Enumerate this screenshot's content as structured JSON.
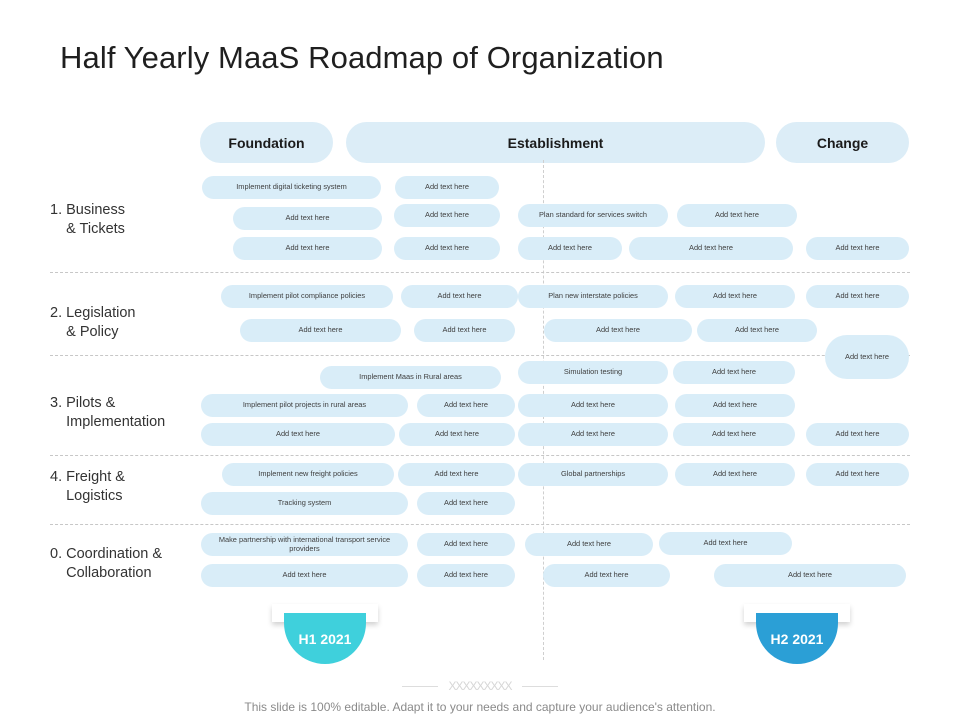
{
  "title": "Half Yearly MaaS Roadmap of Organization",
  "phases": [
    "Foundation",
    "Establishment",
    "Change"
  ],
  "rows": [
    "1. Business\n    & Tickets",
    "2. Legislation\n    & Policy",
    "3. Pilots &\n    Implementation",
    "4. Freight &\n    Logistics",
    "0. Coordination &\n    Collaboration"
  ],
  "tasks": [
    "Implement digital ticketing system",
    "Add text here",
    "Add text here",
    "Add text here",
    "Plan standard  for services switch",
    "Add text here",
    "Add text here",
    "Add text here",
    "Add text here",
    "Add text here",
    "Add text here",
    "Implement pilot compliance policies",
    "Add text here",
    "Plan new interstate policies",
    "Add text here",
    "Add text here",
    "Add text here",
    "Add text here",
    "Add text here",
    "Add text here",
    "Add text here",
    "Implement Maas in Rural areas",
    "Simulation testing",
    "Add text here",
    "Implement pilot projects in rural areas",
    "Add text here",
    "Add text here",
    "Add text here",
    "Add text here",
    "Add text here",
    "Add text here",
    "Add text here",
    "Add text here",
    "Implement new freight policies",
    "Add text here",
    "Global partnerships",
    "Add text here",
    "Add text here",
    "Tracking system",
    "Add text here",
    "Make partnership with international transport service providers",
    "Add text here",
    "Add text here",
    "Add text here",
    "Add text here",
    "Add text here",
    "Add text here",
    "Add text here"
  ],
  "halves": [
    "H1 2021",
    "H2 2021"
  ],
  "colors": {
    "pill": "#d9edf8",
    "h1": "#3fd0dc",
    "h2": "#2b9fd6"
  },
  "footer_decoration": "XXXXXXXXX",
  "footer": "This slide is 100% editable. Adapt it to your needs and capture your audience's attention."
}
